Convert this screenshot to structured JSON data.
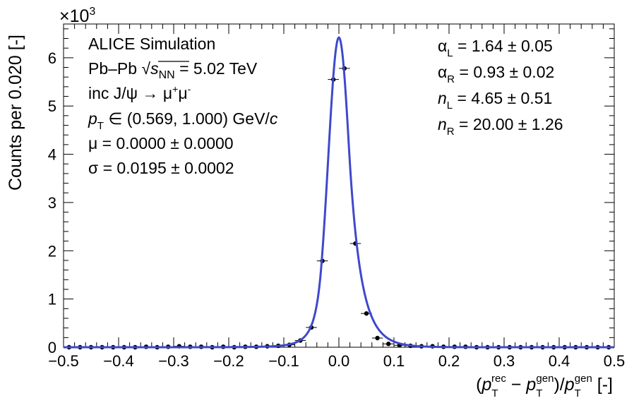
{
  "chart_data": {
    "type": "scatter",
    "xlabel": "(p_T^rec − p_T^gen)/p_T^gen [-]",
    "ylabel": "Counts per 0.020 [-]",
    "y_exponent_label": "×10^3",
    "xlim": [
      -0.5,
      0.5
    ],
    "ylim": [
      0,
      6.7
    ],
    "x_ticks": [
      "−0.5",
      "−0.4",
      "−0.3",
      "−0.2",
      "−0.1",
      "0.0",
      "0.1",
      "0.2",
      "0.3",
      "0.4",
      "0.5"
    ],
    "y_ticks": [
      "0",
      "1",
      "2",
      "3",
      "4",
      "5",
      "6"
    ],
    "bin_width": 0.02,
    "series": [
      {
        "kind": "points",
        "color": "#000000",
        "x": [
          -0.49,
          -0.47,
          -0.45,
          -0.43,
          -0.41,
          -0.39,
          -0.37,
          -0.35,
          -0.33,
          -0.31,
          -0.29,
          -0.27,
          -0.25,
          -0.23,
          -0.21,
          -0.19,
          -0.17,
          -0.15,
          -0.13,
          -0.11,
          -0.09,
          -0.07,
          -0.05,
          -0.03,
          -0.01,
          0.01,
          0.03,
          0.05,
          0.07,
          0.09,
          0.11,
          0.13,
          0.15,
          0.17,
          0.19,
          0.21,
          0.23,
          0.25,
          0.27,
          0.29,
          0.31,
          0.33,
          0.35,
          0.37,
          0.39,
          0.41,
          0.43,
          0.45,
          0.47,
          0.49
        ],
        "y": [
          0.0,
          0.0,
          0.0,
          0.0,
          0.0,
          0.0,
          0.0,
          0.01,
          0.0,
          0.01,
          0.02,
          0.01,
          0.01,
          0.0,
          0.01,
          0.0,
          0.01,
          0.01,
          0.02,
          0.03,
          0.05,
          0.14,
          0.41,
          1.79,
          5.55,
          5.78,
          2.15,
          0.7,
          0.19,
          0.07,
          0.04,
          0.03,
          0.02,
          0.02,
          0.01,
          0.01,
          0.01,
          0.0,
          0.0,
          0.0,
          0.0,
          0.0,
          0.0,
          0.0,
          0.0,
          0.0,
          0.0,
          0.0,
          0.0,
          0.0
        ]
      },
      {
        "kind": "fit",
        "name": "double-sided Crystal Ball",
        "color": "#3f48cc",
        "peak": 6.42,
        "mu": 0.0,
        "sigma": 0.0195,
        "alphaL": 1.64,
        "alphaR": 0.93,
        "nL": 4.65,
        "nR": 20.0
      }
    ],
    "annotations_left": [
      "ALICE Simulation",
      "Pb–Pb √s_NN = 5.02 TeV",
      "inc J/ψ → μ⁺μ⁻",
      "p_T ∈ (0.569, 1.000) GeV/c",
      "μ = 0.0000 ± 0.0000",
      "σ = 0.0195 ± 0.0002"
    ],
    "annotations_right": [
      "α_L = 1.64 ± 0.05",
      "α_R = 0.93 ± 0.02",
      "n_L = 4.65 ± 0.51",
      "n_R = 20.00 ± 1.26"
    ]
  },
  "text": {
    "exp_base": "×10",
    "exp_power": "3",
    "ylabel": "Counts per 0.020 [-]",
    "x_open": "(",
    "x_p": "p",
    "x_T": "T",
    "x_rec": "rec",
    "x_minus": " − ",
    "x_gen": "gen",
    "x_slash": ")/",
    "x_unit": " [-]",
    "ann_alice": "ALICE Simulation",
    "ann_pbpb": "Pb–Pb ",
    "ann_sqrt": "√",
    "ann_s": "s",
    "ann_nn": "NN",
    "ann_energy": " = 5.02 TeV",
    "ann_inc": "inc J/ψ → μ",
    "ann_plus": "+",
    "ann_mu2": "μ",
    "ann_minus": "-",
    "ann_pt_p": "p",
    "ann_pt_T": "T",
    "ann_pt_range": " ∈ (0.569, 1.000) GeV/",
    "ann_pt_c": "c",
    "ann_mu": "μ = 0.0000 ± 0.0000",
    "ann_sigma": "σ = 0.0195 ± 0.0002",
    "aL_sym": "α",
    "aL_sub": "L",
    "aL_val": " = 1.64 ± 0.05",
    "aR_sym": "α",
    "aR_sub": "R",
    "aR_val": " = 0.93 ± 0.02",
    "nL_sym": "n",
    "nL_sub": "L",
    "nL_val": " = 4.65 ± 0.51",
    "nR_sym": "n",
    "nR_sub": "R",
    "nR_val": " = 20.00 ± 1.26"
  }
}
